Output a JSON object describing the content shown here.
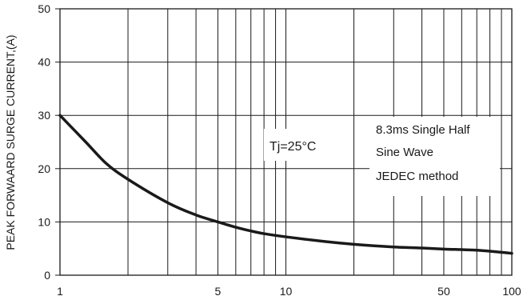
{
  "chart_data": {
    "type": "line",
    "xscale": "log",
    "xlim": [
      1,
      100
    ],
    "ylim": [
      0,
      50
    ],
    "xticks": [
      1,
      5,
      10,
      50,
      100
    ],
    "xtick_labels": [
      "1",
      "5",
      "10",
      "50",
      "100"
    ],
    "xgrid": [
      1,
      2,
      3,
      4,
      5,
      6,
      7,
      8,
      9,
      10,
      20,
      30,
      40,
      50,
      60,
      70,
      80,
      90,
      100
    ],
    "yticks": [
      0,
      10,
      20,
      30,
      40,
      50
    ],
    "ytick_labels": [
      "0",
      "10",
      "20",
      "30",
      "40",
      "50"
    ],
    "ylabel": "PEAK FORWAARD SURGE CURRENT,(A)",
    "xlabel": "",
    "grid": true,
    "series": [
      {
        "x": [
          1,
          1.3,
          1.6,
          2,
          3,
          4,
          5,
          6,
          7,
          8,
          10,
          15,
          20,
          30,
          40,
          50,
          60,
          70,
          80,
          90,
          100
        ],
        "y": [
          30,
          25,
          21,
          18,
          13.6,
          11.3,
          10,
          9,
          8.3,
          7.8,
          7.2,
          6.3,
          5.8,
          5.3,
          5.1,
          4.9,
          4.8,
          4.7,
          4.5,
          4.3,
          4.1
        ]
      }
    ],
    "annotations": [
      "Tj=25°C",
      "8.3ms Single Half",
      "Sine Wave",
      "JEDEC method"
    ]
  },
  "colors": {
    "curve": "#1a1a1a",
    "grid": "#1a1a1a",
    "background": "#ffffff"
  }
}
